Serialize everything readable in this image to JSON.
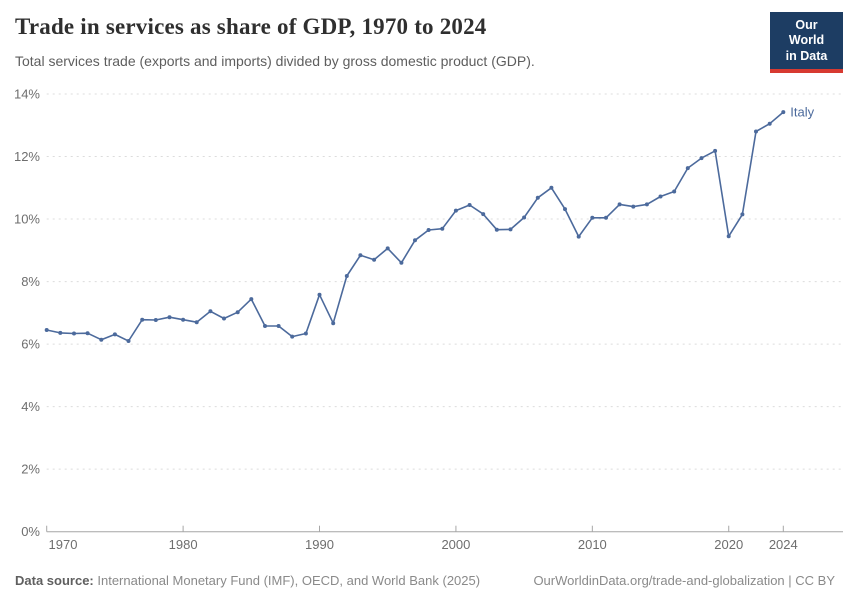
{
  "header": {
    "title": "Trade in services as share of GDP, 1970 to 2024",
    "subtitle": "Total services trade (exports and imports) divided by gross domestic product (GDP).",
    "logo": {
      "line1": "Our World",
      "line2": "in Data",
      "bg_color": "#1d3d63",
      "accent_color": "#d73a31"
    }
  },
  "footer": {
    "source_label": "Data source:",
    "source_text": " International Monetary Fund (IMF), OECD, and World Bank (2025)",
    "link_text": "OurWorldinData.org/trade-and-globalization | CC BY"
  },
  "chart_data": {
    "type": "line",
    "title": "Trade in services as share of GDP, 1970 to 2024",
    "xlabel": "",
    "ylabel": "",
    "xlim": [
      1970,
      2024
    ],
    "ylim": [
      0,
      14
    ],
    "grid": "horizontal-dashed",
    "legend_position": "end-of-line-label",
    "colors": {
      "line": "#4c6a9c",
      "gridline": "#dcdcdc",
      "axis": "#a6a6a6",
      "tick_label": "#6e6e6e"
    },
    "ytick_values": [
      0,
      2,
      4,
      6,
      8,
      10,
      12,
      14
    ],
    "ytick_labels": [
      "0%",
      "2%",
      "4%",
      "6%",
      "8%",
      "10%",
      "12%",
      "14%"
    ],
    "xtick_values": [
      1970,
      1980,
      1990,
      2000,
      2010,
      2020,
      2024
    ],
    "xtick_labels": [
      "1970",
      "1980",
      "1990",
      "2000",
      "2010",
      "2020",
      "2024"
    ],
    "series": [
      {
        "name": "Italy",
        "color": "#4c6a9c",
        "x": [
          1970,
          1971,
          1972,
          1973,
          1974,
          1975,
          1976,
          1977,
          1978,
          1979,
          1980,
          1981,
          1982,
          1983,
          1984,
          1985,
          1986,
          1987,
          1988,
          1989,
          1990,
          1991,
          1992,
          1993,
          1994,
          1995,
          1996,
          1997,
          1998,
          1999,
          2000,
          2001,
          2002,
          2003,
          2004,
          2005,
          2006,
          2007,
          2008,
          2009,
          2010,
          2011,
          2012,
          2013,
          2014,
          2015,
          2016,
          2017,
          2018,
          2019,
          2020,
          2021,
          2022,
          2023,
          2024
        ],
        "values": [
          6.45,
          6.36,
          6.34,
          6.35,
          6.14,
          6.31,
          6.1,
          6.78,
          6.77,
          6.86,
          6.78,
          6.7,
          7.05,
          6.82,
          7.02,
          7.44,
          6.58,
          6.58,
          6.24,
          6.34,
          7.58,
          6.67,
          8.18,
          8.84,
          8.7,
          9.06,
          8.6,
          9.32,
          9.65,
          9.69,
          10.27,
          10.45,
          10.16,
          9.66,
          9.67,
          10.05,
          10.68,
          11.0,
          10.32,
          9.44,
          10.04,
          10.04,
          10.47,
          10.4,
          10.47,
          10.72,
          10.88,
          11.63,
          11.95,
          12.18,
          9.45,
          10.15,
          12.8,
          13.05,
          13.42
        ]
      }
    ]
  }
}
